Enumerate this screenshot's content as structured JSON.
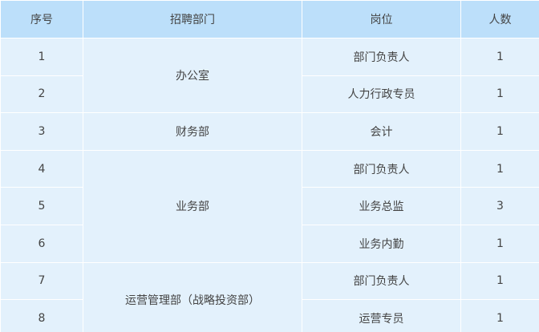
{
  "table": {
    "headers": [
      "序号",
      "招聘部门",
      "岗位",
      "人数"
    ],
    "rows": [
      {
        "no": "1",
        "dept": "办公室",
        "position": "部门负责人",
        "count": "1"
      },
      {
        "no": "2",
        "dept": "",
        "position": "人力行政专员",
        "count": "1"
      },
      {
        "no": "3",
        "dept": "财务部",
        "position": "会计",
        "count": "1"
      },
      {
        "no": "4",
        "dept": "业务部",
        "position": "部门负责人",
        "count": "1"
      },
      {
        "no": "5",
        "dept": "",
        "position": "业务总监",
        "count": "3"
      },
      {
        "no": "6",
        "dept": "",
        "position": "业务内勤",
        "count": "1"
      },
      {
        "no": "7",
        "dept": "运营管理部（战略投资部）",
        "position": "部门负责人",
        "count": "1"
      },
      {
        "no": "8",
        "dept": "",
        "position": "运营专员",
        "count": "1"
      }
    ],
    "colors": {
      "header_bg": "#bcdffa",
      "cell_bg": "#e3f1fc",
      "border": "#ffffff"
    }
  }
}
